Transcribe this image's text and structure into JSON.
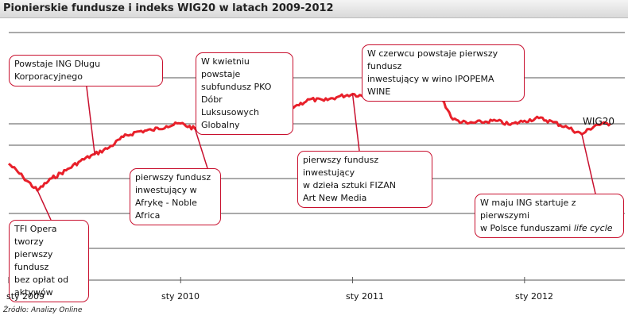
{
  "title": "Pionierskie fundusze i indeks WIG20 w latach 2009-2012",
  "source": "Źródło: Analizy Online",
  "colors": {
    "line": "#e8202a",
    "callout_border": "#c8102e",
    "grid": "#555555"
  },
  "chart_data": {
    "type": "line",
    "title": "Pionierskie fundusze i indeks WIG20 w latach 2009-2012",
    "series": [
      {
        "name": "WIG20",
        "points": [
          [
            "2009-01",
            2.0
          ],
          [
            "2009-02",
            1.0
          ],
          [
            "2009-03",
            0.0
          ],
          [
            "2009-04",
            0.9
          ],
          [
            "2009-05",
            1.5
          ],
          [
            "2009-06",
            2.2
          ],
          [
            "2009-07",
            2.7
          ],
          [
            "2009-08",
            3.2
          ],
          [
            "2009-09",
            4.0
          ],
          [
            "2009-10",
            4.4
          ],
          [
            "2009-11",
            4.5
          ],
          [
            "2009-12",
            4.8
          ],
          [
            "2010-01",
            5.0
          ],
          [
            "2010-02",
            4.6
          ],
          [
            "2010-03",
            5.3
          ],
          [
            "2010-04",
            5.6
          ],
          [
            "2010-05",
            4.9
          ],
          [
            "2010-06",
            5.3
          ],
          [
            "2010-07",
            5.5
          ],
          [
            "2010-08",
            5.9
          ],
          [
            "2010-09",
            6.3
          ],
          [
            "2010-10",
            6.8
          ],
          [
            "2010-11",
            6.7
          ],
          [
            "2010-12",
            7.0
          ],
          [
            "2011-01",
            7.2
          ],
          [
            "2011-02",
            7.0
          ],
          [
            "2011-03",
            7.4
          ],
          [
            "2011-04",
            7.7
          ],
          [
            "2011-05",
            7.6
          ],
          [
            "2011-06",
            7.4
          ],
          [
            "2011-07",
            7.3
          ],
          [
            "2011-08",
            5.3
          ],
          [
            "2011-09",
            5.0
          ],
          [
            "2011-10",
            5.1
          ],
          [
            "2011-11",
            5.2
          ],
          [
            "2011-12",
            4.9
          ],
          [
            "2012-01",
            5.2
          ],
          [
            "2012-02",
            5.4
          ],
          [
            "2012-03",
            5.1
          ],
          [
            "2012-04",
            4.7
          ],
          [
            "2012-05",
            4.2
          ],
          [
            "2012-06",
            4.9
          ],
          [
            "2012-07",
            5.0
          ]
        ]
      }
    ],
    "series_label": "WIG20",
    "x_ticks": [
      "sty 2009",
      "sty 2010",
      "sty 2011",
      "sty 2012"
    ],
    "y_tick_labels": "none",
    "grid": "horizontal"
  },
  "annotations": [
    {
      "date": "2009-07",
      "text_lines": [
        "Powstaje ING Długu Korporacyjnego"
      ]
    },
    {
      "date": "2009-03",
      "text_lines": [
        "TFI Opera tworzy",
        "pierwszy fundusz",
        "bez opłat od",
        "aktywów"
      ]
    },
    {
      "date": "2010-04",
      "text_lines": [
        "W kwietniu powstaje",
        "subfundusz PKO Dóbr",
        "Luksusowych Globalny"
      ]
    },
    {
      "date": "2010-02",
      "text_lines": [
        "pierwszy fundusz",
        "inwestujący w",
        "Afrykę - Noble Africa"
      ]
    },
    {
      "date": "2011-06",
      "text_lines": [
        "W czerwcu powstaje pierwszy fundusz",
        "inwestujący w wino IPOPEMA WINE"
      ]
    },
    {
      "date": "2011-01",
      "text_lines": [
        "pierwszy fundusz inwestujący",
        "w dzieła sztuki FIZAN",
        " Art New Media"
      ]
    },
    {
      "date": "2012-05",
      "text_lines": [
        "W maju ING startuje z pierwszymi",
        "w Polsce funduszami "
      ],
      "italic": "life cycle"
    }
  ]
}
